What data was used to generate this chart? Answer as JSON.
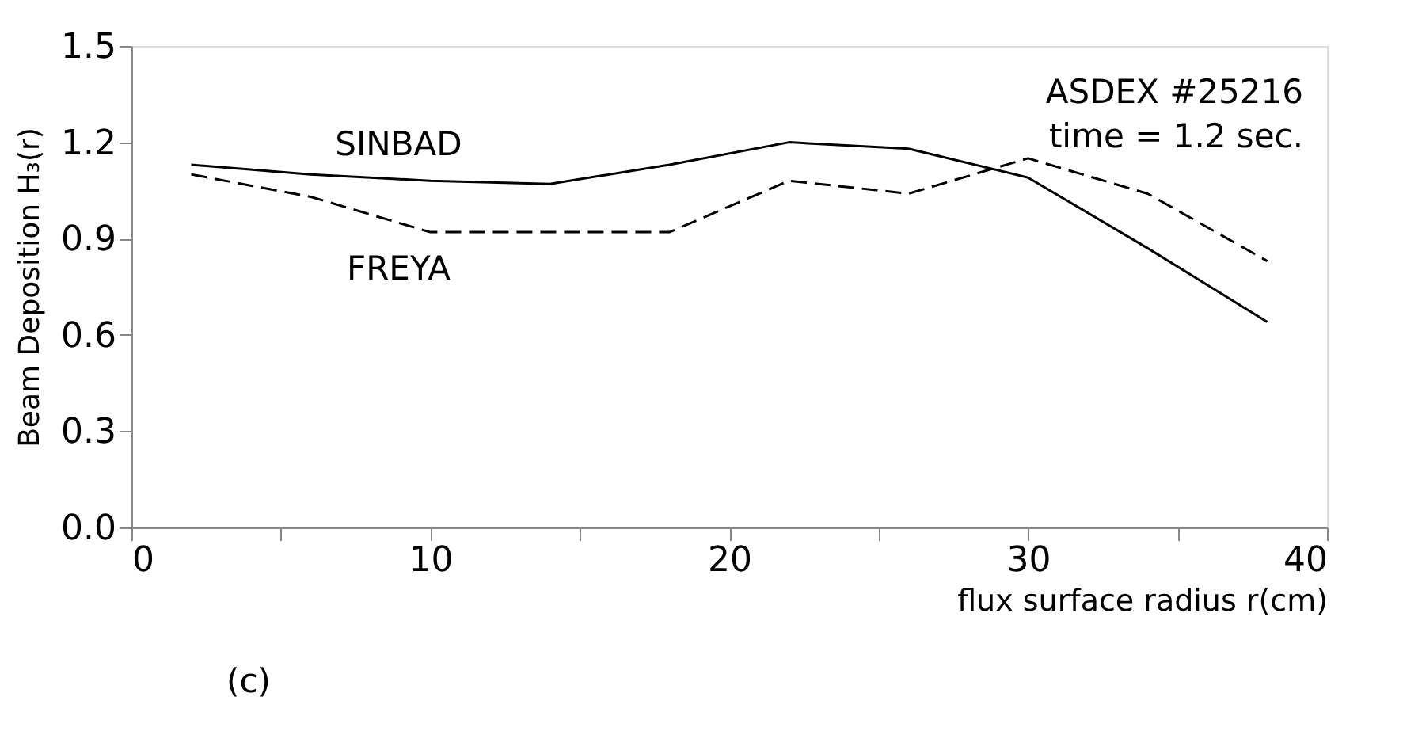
{
  "chart_data": {
    "type": "line",
    "xlabel": "flux surface radius r(cm)",
    "ylabel": "Beam Deposition H₃(r)",
    "x": [
      2,
      6,
      10,
      14,
      18,
      22,
      26,
      30,
      34,
      38
    ],
    "series": [
      {
        "name": "SINBAD",
        "color": "#000000",
        "line_style": "solid",
        "values": [
          1.13,
          1.1,
          1.08,
          1.07,
          1.13,
          1.2,
          1.18,
          1.09,
          0.87,
          0.64
        ]
      },
      {
        "name": "FREYA",
        "color": "#000000",
        "line_style": "dashed",
        "values": [
          1.1,
          1.03,
          0.92,
          0.92,
          0.92,
          1.08,
          1.04,
          1.15,
          1.04,
          0.83
        ]
      }
    ],
    "xlim": [
      0,
      40
    ],
    "ylim": [
      0,
      1.5
    ],
    "xticks": [
      0,
      {
        "value": 5,
        "label": null
      },
      10,
      {
        "value": 15,
        "label": null
      },
      20,
      {
        "value": 25,
        "label": null
      },
      30,
      {
        "value": 35,
        "label": null
      },
      40
    ],
    "yticks": [
      {
        "value": 0,
        "label": "0.0"
      },
      0.3,
      0.6,
      0.9,
      1.2,
      1.5
    ],
    "grid": false,
    "legend": false,
    "marker": "none",
    "annotations": [
      "ASDEX #25216",
      "time = 1.2 sec.",
      "(c)"
    ]
  }
}
